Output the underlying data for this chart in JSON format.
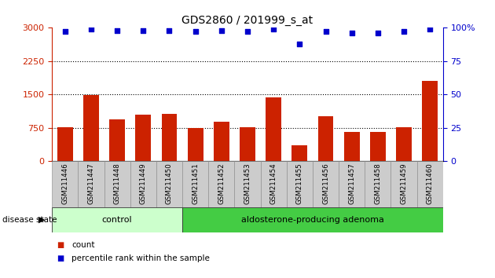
{
  "title": "GDS2860 / 201999_s_at",
  "samples": [
    "GSM211446",
    "GSM211447",
    "GSM211448",
    "GSM211449",
    "GSM211450",
    "GSM211451",
    "GSM211452",
    "GSM211453",
    "GSM211454",
    "GSM211455",
    "GSM211456",
    "GSM211457",
    "GSM211458",
    "GSM211459",
    "GSM211460"
  ],
  "counts": [
    760,
    1480,
    950,
    1050,
    1070,
    740,
    880,
    760,
    1430,
    360,
    1020,
    660,
    660,
    760,
    1800
  ],
  "percentiles": [
    97,
    99,
    98,
    98,
    98,
    97,
    98,
    97,
    99,
    88,
    97,
    96,
    96,
    97,
    99
  ],
  "bar_color": "#cc2200",
  "dot_color": "#0000cc",
  "left_ylim": [
    0,
    3000
  ],
  "right_ylim": [
    0,
    100
  ],
  "left_yticks": [
    0,
    750,
    1500,
    2250,
    3000
  ],
  "right_yticks": [
    0,
    25,
    50,
    75,
    100
  ],
  "right_yticklabels": [
    "0",
    "25",
    "50",
    "75",
    "100%"
  ],
  "grid_values": [
    750,
    1500,
    2250
  ],
  "groups": [
    {
      "label": "control",
      "start": 0,
      "end": 5,
      "color": "#ccffcc"
    },
    {
      "label": "aldosterone-producing adenoma",
      "start": 5,
      "end": 15,
      "color": "#44cc44"
    }
  ],
  "disease_state_label": "disease state",
  "legend_items": [
    {
      "label": "count",
      "color": "#cc2200"
    },
    {
      "label": "percentile rank within the sample",
      "color": "#0000cc"
    }
  ],
  "tick_bg_color": "#cccccc",
  "left_axis_color": "#cc2200",
  "right_axis_color": "#0000cc"
}
